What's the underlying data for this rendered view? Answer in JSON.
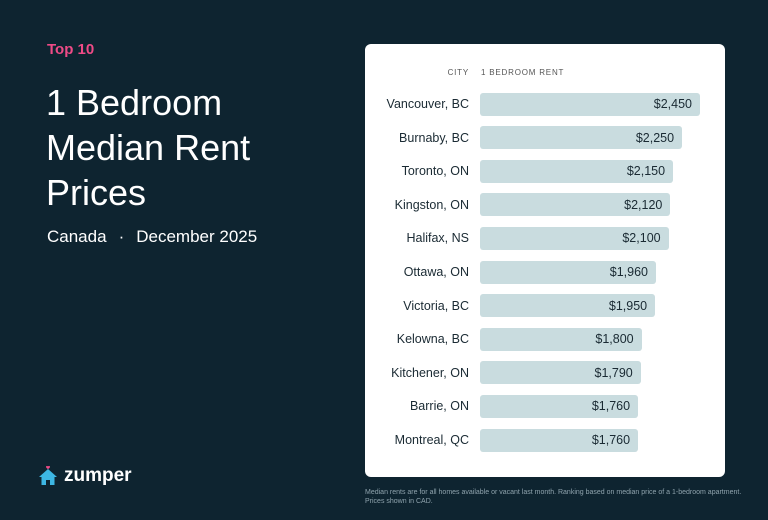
{
  "tag": "Top 10",
  "title_lines": [
    "1 Bedroom",
    "Median Rent",
    "Prices"
  ],
  "region": "Canada",
  "separator": "·",
  "date": "December 2025",
  "brand": "zumper",
  "footnote": "Median rents are for all homes available or vacant last month. Ranking based on median price of a 1-bedroom apartment. Prices shown in CAD.",
  "colors": {
    "background": "#0e2430",
    "accent": "#ef4b87",
    "bar": "#c9dcdf",
    "logo": "#3db7e4"
  },
  "chart_data": {
    "type": "bar",
    "orientation": "horizontal",
    "column_headers": [
      "CITY",
      "1 BEDROOM RENT"
    ],
    "categories": [
      "Vancouver, BC",
      "Burnaby, BC",
      "Toronto, ON",
      "Kingston, ON",
      "Halifax, NS",
      "Ottawa, ON",
      "Victoria, BC",
      "Kelowna, BC",
      "Kitchener, ON",
      "Barrie, ON",
      "Montreal, QC"
    ],
    "values": [
      2450,
      2250,
      2150,
      2120,
      2100,
      1960,
      1950,
      1800,
      1790,
      1760,
      1760
    ],
    "labels": [
      "$2,450",
      "$2,250",
      "$2,150",
      "$2,120",
      "$2,100",
      "$1,960",
      "$1,950",
      "$1,800",
      "$1,790",
      "$1,760",
      "$1,760"
    ]
  }
}
